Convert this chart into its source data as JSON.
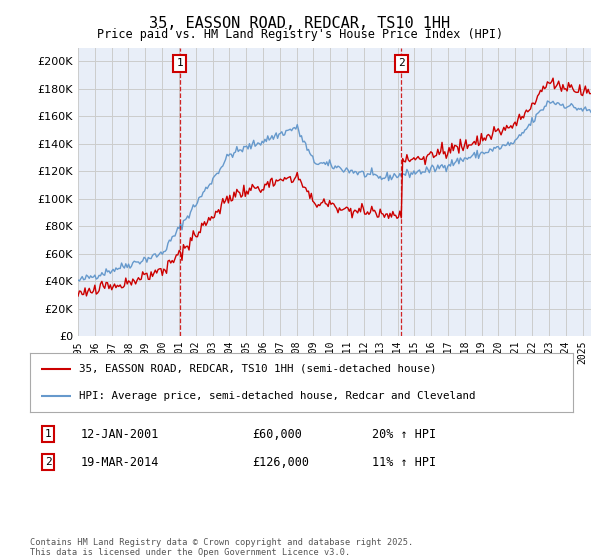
{
  "title": "35, EASSON ROAD, REDCAR, TS10 1HH",
  "subtitle": "Price paid vs. HM Land Registry's House Price Index (HPI)",
  "ylim": [
    0,
    210000
  ],
  "yticks": [
    0,
    20000,
    40000,
    60000,
    80000,
    100000,
    120000,
    140000,
    160000,
    180000,
    200000
  ],
  "x_start_year": 1995,
  "x_end_year": 2025,
  "sale1_date": 2001.04,
  "sale1_price": 60000,
  "sale2_date": 2014.22,
  "sale2_price": 126000,
  "legend_line1": "35, EASSON ROAD, REDCAR, TS10 1HH (semi-detached house)",
  "legend_line2": "HPI: Average price, semi-detached house, Redcar and Cleveland",
  "footer": "Contains HM Land Registry data © Crown copyright and database right 2025.\nThis data is licensed under the Open Government Licence v3.0.",
  "line1_color": "#cc0000",
  "line2_color": "#6699cc",
  "vline_color": "#cc0000",
  "grid_color": "#cccccc",
  "background_color": "#e8eef8",
  "box_color": "#cc0000",
  "ann1_label": "1",
  "ann1_text": "12-JAN-2001",
  "ann1_price": "£60,000",
  "ann1_hpi": "20% ↑ HPI",
  "ann2_label": "2",
  "ann2_text": "19-MAR-2014",
  "ann2_price": "£126,000",
  "ann2_hpi": "11% ↑ HPI"
}
